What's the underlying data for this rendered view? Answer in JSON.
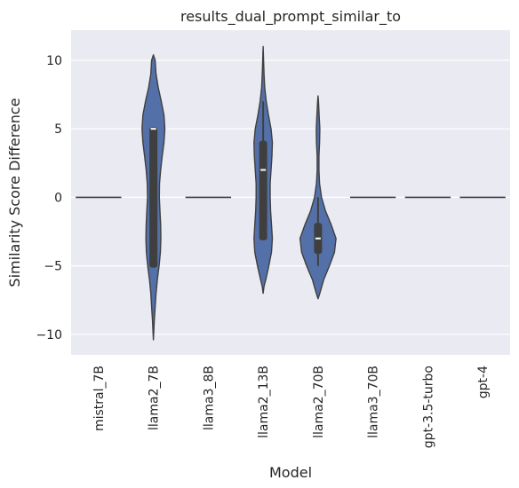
{
  "chart_data": {
    "type": "violin",
    "title": "results_dual_prompt_similar_to",
    "xlabel": "Model",
    "ylabel": "Similarity Score Difference",
    "ylim": [
      -11.5,
      12.2
    ],
    "yticks": [
      -10,
      -5,
      0,
      5,
      10
    ],
    "ytick_labels": [
      "−10",
      "−5",
      "0",
      "5",
      "10"
    ],
    "grid": true,
    "categories": [
      "mistral_7B",
      "llama2_7B",
      "llama3_8B",
      "llama2_13B",
      "llama2_70B",
      "llama3_70B",
      "gpt-3.5-turbo",
      "gpt-4"
    ],
    "violins": [
      {
        "category": "mistral_7B",
        "flat": true,
        "value": 0
      },
      {
        "category": "llama2_7B",
        "min": -10.4,
        "max": 10.4,
        "median": 5,
        "q1": -5,
        "q3": 5,
        "whisker_low": -5,
        "whisker_high": 5,
        "profile": [
          [
            -10.4,
            0
          ],
          [
            -9,
            0.04
          ],
          [
            -8,
            0.08
          ],
          [
            -7,
            0.12
          ],
          [
            -6,
            0.18
          ],
          [
            -5,
            0.26
          ],
          [
            -4,
            0.32
          ],
          [
            -3,
            0.34
          ],
          [
            -2,
            0.33
          ],
          [
            -1,
            0.3
          ],
          [
            0,
            0.27
          ],
          [
            1,
            0.28
          ],
          [
            2,
            0.33
          ],
          [
            3,
            0.4
          ],
          [
            4,
            0.48
          ],
          [
            5,
            0.52
          ],
          [
            6,
            0.48
          ],
          [
            7,
            0.36
          ],
          [
            8,
            0.22
          ],
          [
            9,
            0.12
          ],
          [
            10,
            0.08
          ],
          [
            10.4,
            0
          ]
        ]
      },
      {
        "category": "llama3_8B",
        "flat": true,
        "value": 0
      },
      {
        "category": "llama2_13B",
        "min": -7.0,
        "max": 11.0,
        "median": 2,
        "q1": -3,
        "q3": 4,
        "whisker_low": -3,
        "whisker_high": 7,
        "profile": [
          [
            -7,
            0
          ],
          [
            -6.5,
            0.04
          ],
          [
            -6,
            0.12
          ],
          [
            -5,
            0.26
          ],
          [
            -4,
            0.38
          ],
          [
            -3,
            0.42
          ],
          [
            -2,
            0.38
          ],
          [
            -1,
            0.34
          ],
          [
            0,
            0.32
          ],
          [
            1,
            0.32
          ],
          [
            2,
            0.36
          ],
          [
            3,
            0.4
          ],
          [
            4,
            0.42
          ],
          [
            5,
            0.36
          ],
          [
            6,
            0.24
          ],
          [
            7,
            0.14
          ],
          [
            8,
            0.07
          ],
          [
            9,
            0.04
          ],
          [
            10,
            0.02
          ],
          [
            11,
            0
          ]
        ]
      },
      {
        "category": "llama2_70B",
        "min": -7.4,
        "max": 7.4,
        "median": -3,
        "q1": -4,
        "q3": -2,
        "whisker_low": -5,
        "whisker_high": 0,
        "profile": [
          [
            -7.4,
            0
          ],
          [
            -7,
            0.08
          ],
          [
            -6,
            0.26
          ],
          [
            -5,
            0.52
          ],
          [
            -4,
            0.75
          ],
          [
            -3,
            0.82
          ],
          [
            -2,
            0.6
          ],
          [
            -1,
            0.34
          ],
          [
            0,
            0.16
          ],
          [
            1,
            0.07
          ],
          [
            2,
            0.04
          ],
          [
            3,
            0.04
          ],
          [
            4,
            0.07
          ],
          [
            5,
            0.08
          ],
          [
            6,
            0.05
          ],
          [
            7,
            0.02
          ],
          [
            7.4,
            0
          ]
        ]
      },
      {
        "category": "llama3_70B",
        "flat": true,
        "value": 0
      },
      {
        "category": "gpt-3.5-turbo",
        "flat": true,
        "value": 0
      },
      {
        "category": "gpt-4",
        "flat": true,
        "value": 0
      }
    ],
    "colors": {
      "violin_fill": "#5470a8",
      "violin_edge": "#3f3f3f",
      "box": "#3f3f3f",
      "median": "#ffffff",
      "plot_bg": "#eaeaf2",
      "grid": "#ffffff"
    }
  }
}
